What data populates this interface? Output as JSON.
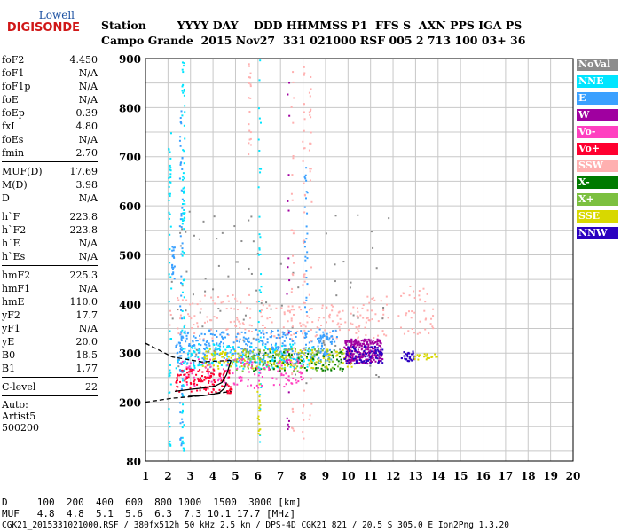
{
  "logo": {
    "top": "Lowell",
    "bottom": "DIGISONDE"
  },
  "header": {
    "labels": "Station        YYYY DAY    DDD HHMMSS P1  FFS S  AXN PPS IGA PS",
    "values": "Campo Grande  2015 Nov27  331 021000 RSF 005 2 713 100 03+ 36"
  },
  "params": [
    [
      {
        "k": "foF2",
        "v": "4.450"
      },
      {
        "k": "foF1",
        "v": "N/A"
      },
      {
        "k": "foF1p",
        "v": "N/A"
      },
      {
        "k": "foE",
        "v": "N/A"
      },
      {
        "k": "foEp",
        "v": "0.39"
      },
      {
        "k": "fxI",
        "v": "4.80"
      },
      {
        "k": "foEs",
        "v": "N/A"
      },
      {
        "k": "fmin",
        "v": "2.70"
      }
    ],
    [
      {
        "k": "MUF(D)",
        "v": "17.69"
      },
      {
        "k": "M(D)",
        "v": "3.98"
      },
      {
        "k": "D",
        "v": "N/A"
      }
    ],
    [
      {
        "k": "h`F",
        "v": "223.8"
      },
      {
        "k": "h`F2",
        "v": "223.8"
      },
      {
        "k": "h`E",
        "v": "N/A"
      },
      {
        "k": "h`Es",
        "v": "N/A"
      }
    ],
    [
      {
        "k": "hmF2",
        "v": "225.3"
      },
      {
        "k": "hmF1",
        "v": "N/A"
      },
      {
        "k": "hmE",
        "v": "110.0"
      },
      {
        "k": "yF2",
        "v": "17.7"
      },
      {
        "k": "yF1",
        "v": "N/A"
      },
      {
        "k": "yE",
        "v": "20.0"
      },
      {
        "k": "B0",
        "v": "18.5"
      },
      {
        "k": "B1",
        "v": "1.77"
      }
    ],
    [
      {
        "k": "C-level",
        "v": "22"
      }
    ]
  ],
  "auto": [
    "Auto:",
    "Artist5",
    "500200"
  ],
  "legend": [
    {
      "label": "NoVal",
      "color": "#8c8c8c"
    },
    {
      "label": "NNE",
      "color": "#00e5ff"
    },
    {
      "label": "E",
      "color": "#3aa0ff"
    },
    {
      "label": "W",
      "color": "#a000a0"
    },
    {
      "label": "Vo-",
      "color": "#ff40c0"
    },
    {
      "label": "Vo+",
      "color": "#ff0030"
    },
    {
      "label": "SSW",
      "color": "#ffb0b0"
    },
    {
      "label": "X-",
      "color": "#007a00"
    },
    {
      "label": "X+",
      "color": "#7cc040"
    },
    {
      "label": "SSE",
      "color": "#d8d800"
    },
    {
      "label": "NNW",
      "color": "#2a00c0"
    }
  ],
  "footer": {
    "d_row": "D     100  200  400  600  800 1000  1500  3000 [km]",
    "muf_row": "MUF   4.8  4.8  5.1  5.6  6.3  7.3 10.1 17.7 [MHz]",
    "status": "CGK21_2015331021000.RSF / 380fx512h 50 kHz 2.5 km / DPS-4D CGK21 821 / 20.5 S 305.0 E Ion2Png 1.3.20"
  },
  "chart_data": {
    "type": "scatter",
    "title": "",
    "xlabel": "",
    "ylabel": "",
    "xlim": [
      1,
      20
    ],
    "ylim": [
      80,
      900
    ],
    "xticks": [
      "1",
      "2",
      "3",
      "4",
      "5",
      "6",
      "7",
      "8",
      "9",
      "10",
      "11",
      "12",
      "13",
      "14",
      "15",
      "16",
      "17",
      "18",
      "19",
      "20"
    ],
    "yticks": [
      {
        "value": 80,
        "label": "80"
      },
      {
        "value": 200,
        "label": "200"
      },
      {
        "value": 300,
        "label": "300"
      },
      {
        "value": 400,
        "label": "400"
      },
      {
        "value": 500,
        "label": "500"
      },
      {
        "value": 600,
        "label": "600"
      },
      {
        "value": 700,
        "label": "700"
      },
      {
        "value": 800,
        "label": "800"
      },
      {
        "value": 900,
        "label": "900"
      }
    ],
    "grid": true,
    "ygrid_step": 50,
    "clusters": [
      {
        "series": "SSW",
        "x": [
          2.0,
          6.5
        ],
        "y": [
          330,
          420
        ],
        "n": 90
      },
      {
        "series": "SSW",
        "x": [
          6.0,
          10.5
        ],
        "y": [
          330,
          400
        ],
        "n": 90
      },
      {
        "series": "SSW",
        "x": [
          10.3,
          11.8
        ],
        "y": [
          330,
          420
        ],
        "n": 40
      },
      {
        "series": "SSW",
        "x": [
          12.2,
          13.8
        ],
        "y": [
          340,
          440
        ],
        "n": 40
      },
      {
        "series": "E",
        "x": [
          2.3,
          9.5
        ],
        "y": [
          280,
          350
        ],
        "n": 380
      },
      {
        "series": "NNE",
        "x": [
          2.3,
          8.5
        ],
        "y": [
          270,
          320
        ],
        "n": 160
      },
      {
        "series": "SSE",
        "x": [
          3.5,
          10.2
        ],
        "y": [
          270,
          310
        ],
        "n": 200
      },
      {
        "series": "X+",
        "x": [
          5.0,
          9.8
        ],
        "y": [
          265,
          310
        ],
        "n": 110
      },
      {
        "series": "X-",
        "x": [
          5.5,
          9.8
        ],
        "y": [
          265,
          305
        ],
        "n": 70
      },
      {
        "series": "Vo-",
        "x": [
          2.4,
          8.0
        ],
        "y": [
          230,
          290
        ],
        "n": 130
      },
      {
        "series": "Vo+",
        "x": [
          2.3,
          4.8
        ],
        "y": [
          220,
          270
        ],
        "n": 130
      },
      {
        "series": "W",
        "x": [
          9.8,
          11.5
        ],
        "y": [
          280,
          330
        ],
        "n": 260
      },
      {
        "series": "NNW",
        "x": [
          9.8,
          11.5
        ],
        "y": [
          280,
          315
        ],
        "n": 80
      },
      {
        "series": "NNW",
        "x": [
          12.3,
          12.9
        ],
        "y": [
          285,
          305
        ],
        "n": 30
      },
      {
        "series": "SSE",
        "x": [
          12.9,
          14.0
        ],
        "y": [
          285,
          300
        ],
        "n": 20
      },
      {
        "series": "NoVal",
        "x": [
          2.0,
          12.0
        ],
        "y": [
          240,
          600
        ],
        "n": 90
      }
    ],
    "vertical_streaks": [
      {
        "series": "NNE",
        "x": 2.65,
        "y": [
          100,
          900
        ],
        "n": 80
      },
      {
        "series": "E",
        "x": 2.55,
        "y": [
          110,
          800
        ],
        "n": 60
      },
      {
        "series": "NNE",
        "x": 2.05,
        "y": [
          110,
          750
        ],
        "n": 50
      },
      {
        "series": "E",
        "x": 2.2,
        "y": [
          450,
          520
        ],
        "n": 20
      },
      {
        "series": "NNE",
        "x": 6.05,
        "y": [
          120,
          900
        ],
        "n": 40
      },
      {
        "series": "SSW",
        "x": 5.6,
        "y": [
          700,
          900
        ],
        "n": 20
      },
      {
        "series": "SSW",
        "x": 7.5,
        "y": [
          120,
          900
        ],
        "n": 40
      },
      {
        "series": "SSW",
        "x": 8.0,
        "y": [
          120,
          900
        ],
        "n": 40
      },
      {
        "series": "E",
        "x": 8.1,
        "y": [
          300,
          680
        ],
        "n": 30
      },
      {
        "series": "SSW",
        "x": 8.3,
        "y": [
          150,
          900
        ],
        "n": 30
      },
      {
        "series": "W",
        "x": 7.3,
        "y": [
          120,
          880
        ],
        "n": 20
      },
      {
        "series": "SSE",
        "x": 6.0,
        "y": [
          130,
          250
        ],
        "n": 20
      }
    ],
    "traces": [
      {
        "name": "o-trace",
        "x": [
          2.3,
          3.0,
          3.6,
          4.1,
          4.4,
          4.6,
          4.8
        ],
        "y": [
          222,
          226,
          229,
          233,
          240,
          256,
          285
        ],
        "color": "#000000"
      },
      {
        "name": "x-trace",
        "x": [
          2.9,
          3.5,
          4.0,
          4.3,
          4.5,
          4.6
        ],
        "y": [
          212,
          213,
          216,
          220,
          228,
          240
        ],
        "color": "#000000"
      },
      {
        "name": "dashed-upper",
        "x": [
          1.0,
          2.2,
          3.5,
          4.8
        ],
        "y": [
          320,
          292,
          282,
          285
        ],
        "color": "#000000",
        "dashed": true
      },
      {
        "name": "dashed-lower",
        "x": [
          1.0,
          2.2,
          3.5,
          4.8
        ],
        "y": [
          200,
          208,
          213,
          222
        ],
        "color": "#000000",
        "dashed": true
      }
    ]
  }
}
